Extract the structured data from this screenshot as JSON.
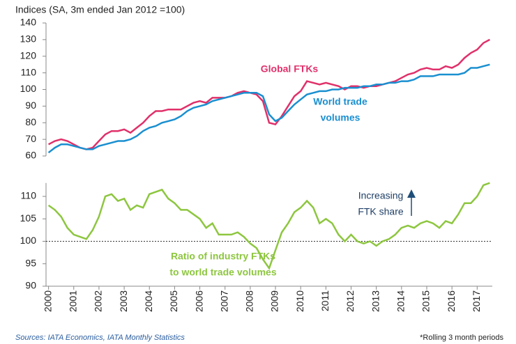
{
  "chart_data": [
    {
      "type": "line",
      "ylabel": "Indices (SA, 3m ended Jan 2012 =100)",
      "x": [
        2000,
        2000.25,
        2000.5,
        2000.75,
        2001,
        2001.25,
        2001.5,
        2001.75,
        2002,
        2002.25,
        2002.5,
        2002.75,
        2003,
        2003.25,
        2003.5,
        2003.75,
        2004,
        2004.25,
        2004.5,
        2004.75,
        2005,
        2005.25,
        2005.5,
        2005.75,
        2006,
        2006.25,
        2006.5,
        2006.75,
        2007,
        2007.25,
        2007.5,
        2007.75,
        2008,
        2008.25,
        2008.5,
        2008.75,
        2009,
        2009.25,
        2009.5,
        2009.75,
        2010,
        2010.25,
        2010.5,
        2010.75,
        2011,
        2011.25,
        2011.5,
        2011.75,
        2012,
        2012.25,
        2012.5,
        2012.75,
        2013,
        2013.25,
        2013.5,
        2013.75,
        2014,
        2014.25,
        2014.5,
        2014.75,
        2015,
        2015.25,
        2015.5,
        2015.75,
        2016,
        2016.25,
        2016.5,
        2016.75,
        2017,
        2017.25,
        2017.5
      ],
      "series": [
        {
          "name": "Global FTKs",
          "color": "#e0306a",
          "values": [
            67,
            69,
            70,
            69,
            67,
            65,
            64,
            65,
            69,
            73,
            75,
            75,
            76,
            74,
            77,
            80,
            84,
            87,
            87,
            88,
            88,
            88,
            90,
            92,
            93,
            92,
            95,
            95,
            95,
            96,
            98,
            99,
            98,
            97,
            93,
            80,
            79,
            84,
            90,
            96,
            99,
            105,
            104,
            103,
            104,
            103,
            102,
            100,
            102,
            102,
            101,
            102,
            102,
            103,
            104,
            105,
            107,
            109,
            110,
            112,
            113,
            112,
            112,
            114,
            113,
            115,
            119,
            122,
            124,
            128,
            130
          ]
        },
        {
          "name": "World trade volumes",
          "color": "#1a8fd0",
          "values": [
            62,
            65,
            67,
            67,
            66,
            65,
            64,
            64,
            66,
            67,
            68,
            69,
            69,
            70,
            72,
            75,
            77,
            78,
            80,
            81,
            82,
            84,
            87,
            89,
            90,
            91,
            93,
            94,
            95,
            96,
            97,
            98,
            98,
            98,
            96,
            85,
            81,
            83,
            87,
            91,
            94,
            97,
            98,
            99,
            99,
            100,
            100,
            101,
            101,
            101,
            102,
            102,
            103,
            103,
            104,
            104,
            105,
            105,
            106,
            108,
            108,
            108,
            109,
            109,
            109,
            109,
            110,
            113,
            113,
            114,
            115
          ]
        }
      ],
      "annotations": [
        [
          "Global FTKs"
        ],
        [
          "World trade",
          "volumes"
        ]
      ],
      "xlim": [
        1999.9,
        2017.6
      ],
      "ylim": [
        60,
        140
      ],
      "yticks": [
        60,
        70,
        80,
        90,
        100,
        110,
        120,
        130,
        140
      ]
    },
    {
      "type": "line",
      "x": [
        2000,
        2000.25,
        2000.5,
        2000.75,
        2001,
        2001.25,
        2001.5,
        2001.75,
        2002,
        2002.25,
        2002.5,
        2002.75,
        2003,
        2003.25,
        2003.5,
        2003.75,
        2004,
        2004.25,
        2004.5,
        2004.75,
        2005,
        2005.25,
        2005.5,
        2005.75,
        2006,
        2006.25,
        2006.5,
        2006.75,
        2007,
        2007.25,
        2007.5,
        2007.75,
        2008,
        2008.25,
        2008.5,
        2008.75,
        2009,
        2009.25,
        2009.5,
        2009.75,
        2010,
        2010.25,
        2010.5,
        2010.75,
        2011,
        2011.25,
        2011.5,
        2011.75,
        2012,
        2012.25,
        2012.5,
        2012.75,
        2013,
        2013.25,
        2013.5,
        2013.75,
        2014,
        2014.25,
        2014.5,
        2014.75,
        2015,
        2015.25,
        2015.5,
        2015.75,
        2016,
        2016.25,
        2016.5,
        2016.75,
        2017,
        2017.25,
        2017.5
      ],
      "series": [
        {
          "name": "Ratio of industry FTKs to world trade volumes",
          "color": "#8dc63f",
          "values": [
            108,
            107,
            105.5,
            103,
            101.5,
            101,
            100.5,
            102.5,
            105.5,
            110,
            110.5,
            109,
            109.5,
            107,
            108,
            107.5,
            110.5,
            111,
            111.5,
            109.5,
            108.5,
            107,
            107,
            106,
            105,
            103,
            104,
            101.5,
            101.5,
            101.5,
            102,
            101,
            99.5,
            98.5,
            96,
            94,
            98,
            102,
            104,
            106.5,
            107.5,
            109,
            107.5,
            104,
            105,
            104,
            101.5,
            100,
            101.5,
            100,
            99.5,
            100,
            99,
            100,
            100.5,
            101.5,
            103,
            103.5,
            103,
            104,
            104.5,
            104,
            103,
            104.5,
            104,
            106,
            108.5,
            108.5,
            110,
            112.5,
            113
          ]
        }
      ],
      "annotations": [
        [
          "Ratio of industry FTKs",
          "to world trade volumes"
        ],
        [
          "Increasing",
          "FTK share"
        ]
      ],
      "hline": 100,
      "xlim": [
        1999.9,
        2017.6
      ],
      "xticks": [
        2000,
        2001,
        2002,
        2003,
        2004,
        2005,
        2006,
        2007,
        2008,
        2009,
        2010,
        2011,
        2012,
        2013,
        2014,
        2015,
        2016,
        2017
      ],
      "ylim": [
        90,
        113
      ],
      "yticks": [
        90,
        95,
        100,
        105,
        110
      ]
    }
  ],
  "footer": {
    "source": "Sources: IATA Economics, IATA Monthly Statistics",
    "note": "*Rolling 3 month periods"
  }
}
